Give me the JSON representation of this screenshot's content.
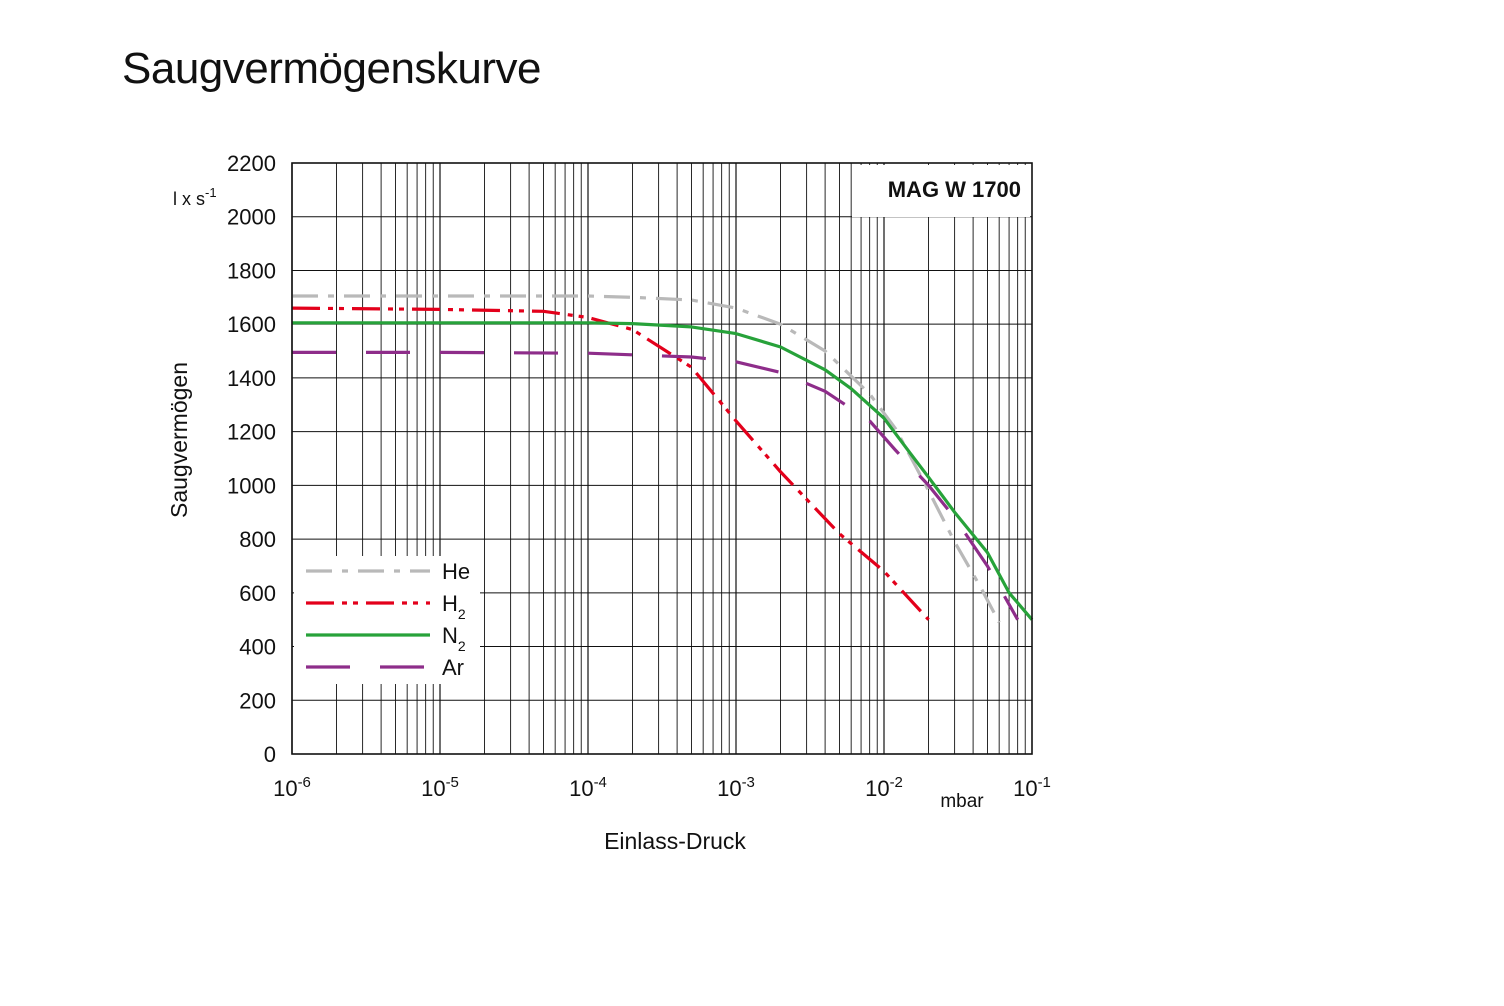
{
  "page": {
    "title": "Saugvermögenskurve"
  },
  "chart_data": {
    "type": "line",
    "model_label": "MAG W 1700",
    "xlabel": "Einlass-Druck",
    "x_unit": "mbar",
    "ylabel": "Saugvermögen",
    "y_unit": "l x s-1",
    "x_scale": "log",
    "xlim": [
      1e-06,
      0.1
    ],
    "ylim": [
      0,
      2200
    ],
    "y_ticks": [
      0,
      200,
      400,
      600,
      800,
      1000,
      1200,
      1400,
      1600,
      1800,
      2000,
      2200
    ],
    "x_ticks": [
      {
        "value": 1e-06,
        "base": "10",
        "exp": "-6"
      },
      {
        "value": 1e-05,
        "base": "10",
        "exp": "-5"
      },
      {
        "value": 0.0001,
        "base": "10",
        "exp": "-4"
      },
      {
        "value": 0.001,
        "base": "10",
        "exp": "-3"
      },
      {
        "value": 0.01,
        "base": "10",
        "exp": "-2"
      },
      {
        "value": 0.1,
        "base": "10",
        "exp": "-1"
      }
    ],
    "grid": true,
    "legend_position": "bottom-left",
    "series": [
      {
        "name": "He",
        "sub": "",
        "color": "#b9b9b9",
        "dash": "26 10 6 10",
        "x": [
          1e-06,
          1e-05,
          0.0001,
          0.0002,
          0.0005,
          0.001,
          0.002,
          0.004,
          0.008,
          0.012,
          0.02,
          0.03,
          0.045,
          0.06
        ],
        "y": [
          1705,
          1705,
          1705,
          1700,
          1690,
          1660,
          1600,
          1500,
          1340,
          1210,
          980,
          790,
          620,
          490
        ]
      },
      {
        "name": "H",
        "sub": "2",
        "color": "#e3001b",
        "dash": "28 8 5 6 5 8",
        "x": [
          1e-06,
          1e-05,
          5e-05,
          0.0001,
          0.0002,
          0.0005,
          0.001,
          0.002,
          0.005,
          0.01,
          0.02
        ],
        "y": [
          1660,
          1655,
          1648,
          1625,
          1580,
          1440,
          1240,
          1050,
          820,
          680,
          500
        ]
      },
      {
        "name": "N",
        "sub": "2",
        "color": "#27a23a",
        "dash": "",
        "x": [
          1e-06,
          1e-05,
          0.0001,
          0.0002,
          0.0005,
          0.001,
          0.002,
          0.004,
          0.006,
          0.01,
          0.015,
          0.02,
          0.03,
          0.05,
          0.07,
          0.1
        ],
        "y": [
          1605,
          1605,
          1605,
          1602,
          1590,
          1565,
          1515,
          1430,
          1360,
          1250,
          1120,
          1030,
          900,
          750,
          600,
          500
        ]
      },
      {
        "name": "Ar",
        "sub": "",
        "color": "#8e2d8a",
        "dash": "44 30",
        "x": [
          1e-06,
          1e-05,
          0.0001,
          0.0005,
          0.001,
          0.002,
          0.004,
          0.008,
          0.012,
          0.02,
          0.03,
          0.05,
          0.08
        ],
        "y": [
          1495,
          1495,
          1492,
          1478,
          1460,
          1420,
          1350,
          1240,
          1130,
          1000,
          880,
          700,
          500
        ]
      }
    ]
  }
}
